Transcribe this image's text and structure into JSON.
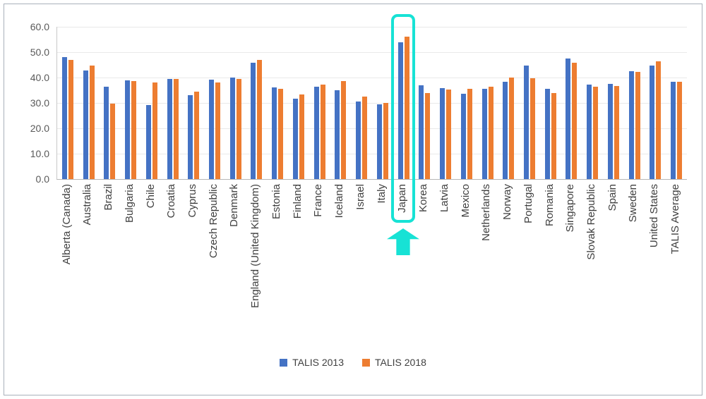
{
  "chart_data": {
    "type": "bar",
    "title": "",
    "categories": [
      "Alberta (Canada)",
      "Australia",
      "Brazil",
      "Bulgaria",
      "Chile",
      "Croatia",
      "Cyprus",
      "Czech Republic",
      "Denmark",
      "England (United Kingdom)",
      "Estonia",
      "Finland",
      "France",
      "Iceland",
      "Israel",
      "Italy",
      "Japan",
      "Korea",
      "Latvia",
      "Mexico",
      "Netherlands",
      "Norway",
      "Portugal",
      "Romania",
      "Singapore",
      "Slovak Republic",
      "Spain",
      "Sweden",
      "United States",
      "TALIS Average"
    ],
    "series": [
      {
        "name": "TALIS 2013",
        "color": "#4472C4",
        "values": [
          48.2,
          42.7,
          36.5,
          38.9,
          29.2,
          39.5,
          33.1,
          39.3,
          40.0,
          45.9,
          36.1,
          31.8,
          36.5,
          35.0,
          30.6,
          29.4,
          53.9,
          37.0,
          35.9,
          33.6,
          35.6,
          38.3,
          44.7,
          35.5,
          47.6,
          37.3,
          37.4,
          42.4,
          44.8,
          38.3
        ]
      },
      {
        "name": "TALIS 2018",
        "color": "#ED7D31",
        "values": [
          47.0,
          44.8,
          29.8,
          38.6,
          38.1,
          39.4,
          34.4,
          38.0,
          39.4,
          46.9,
          35.7,
          33.3,
          37.3,
          38.6,
          32.6,
          30.0,
          56.0,
          34.0,
          35.2,
          35.6,
          36.4,
          39.9,
          39.6,
          33.8,
          45.9,
          36.5,
          36.7,
          42.3,
          46.3,
          38.4
        ]
      }
    ],
    "xlabel": "",
    "ylabel": "",
    "ylim": [
      0,
      60
    ],
    "ytick_step": 10,
    "yticks": [
      "0.0",
      "10.0",
      "20.0",
      "30.0",
      "40.0",
      "50.0",
      "60.0"
    ],
    "grid": true,
    "legend_position": "bottom",
    "highlight": {
      "category": "Japan",
      "color": "#17E2D5",
      "shape": "rounded-rect-with-up-arrow"
    }
  }
}
